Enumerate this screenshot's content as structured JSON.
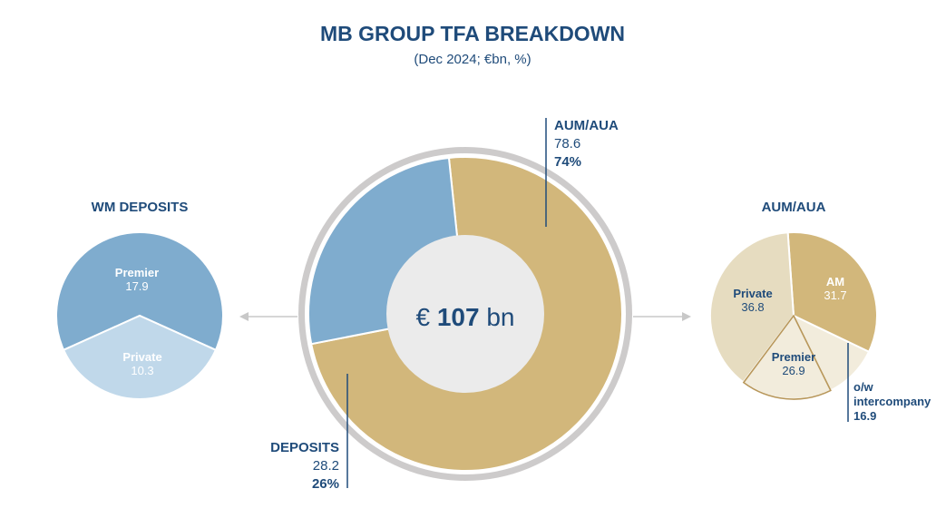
{
  "header": {
    "title": "MB GROUP TFA BREAKDOWN",
    "subtitle": "(Dec 2024; €bn, %)"
  },
  "center": {
    "currency": "€",
    "amount": "107",
    "unit": "bn"
  },
  "callouts": {
    "aum": {
      "label": "AUM/AUA",
      "value": "78.6",
      "pct": "74%"
    },
    "deposits": {
      "label": "DEPOSITS",
      "value": "28.2",
      "pct": "26%"
    }
  },
  "panels": {
    "left_title": "WM DEPOSITS",
    "right_title": "AUM/AUA",
    "intercompany_label_1": "o/w",
    "intercompany_label_2": "intercompany",
    "intercompany_value": "16.9"
  },
  "colors": {
    "blue": "#7facce",
    "light_blue": "#c0d8ea",
    "gold": "#d2b77b",
    "gold_dark": "#b8975a",
    "cream": "#e6dcc0",
    "light_cream": "#f2ecdc",
    "ring": "#cdcbcb",
    "navy": "#1f4b7a"
  },
  "chart_data": [
    {
      "type": "pie",
      "title": "MB GROUP TFA BREAKDOWN",
      "total": 107,
      "categories": [
        "AUM/AUA",
        "DEPOSITS"
      ],
      "values": [
        78.6,
        28.2
      ],
      "percentages": [
        74,
        26
      ]
    },
    {
      "type": "pie",
      "title": "WM DEPOSITS",
      "categories": [
        "Premier",
        "Private"
      ],
      "values": [
        17.9,
        10.3
      ]
    },
    {
      "type": "pie",
      "title": "AUM/AUA",
      "categories": [
        "AM",
        "Premier",
        "Private"
      ],
      "values": [
        31.7,
        26.9,
        36.8
      ],
      "sub_slice": {
        "parent": "AM",
        "label": "o/w intercompany",
        "value": 16.9
      }
    }
  ]
}
